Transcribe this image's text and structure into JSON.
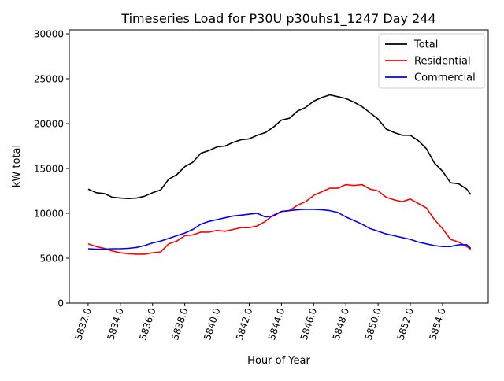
{
  "chart_data": {
    "type": "line",
    "title": "Timeseries Load for P30U p30uhs1_1247  Day 244",
    "xlabel": "Hour of Year",
    "ylabel": "kW total",
    "xlim": [
      5830.83,
      5856.84
    ],
    "ylim": [
      0,
      30440
    ],
    "xticks": [
      5832,
      5834,
      5836,
      5838,
      5840,
      5842,
      5844,
      5846,
      5848,
      5850,
      5852,
      5854
    ],
    "xtick_labels": [
      "5832.0",
      "5834.0",
      "5836.0",
      "5838.0",
      "5840.0",
      "5842.0",
      "5844.0",
      "5846.0",
      "5848.0",
      "5850.0",
      "5852.0",
      "5854.0"
    ],
    "yticks": [
      0,
      5000,
      10000,
      15000,
      20000,
      25000,
      30000
    ],
    "ytick_labels": [
      "0",
      "5000",
      "10000",
      "15000",
      "20000",
      "25000",
      "30000"
    ],
    "grid": false,
    "legend_position": "top-right",
    "x": [
      5832,
      5832.5,
      5833,
      5833.5,
      5834,
      5834.5,
      5835,
      5835.5,
      5836,
      5836.5,
      5837,
      5837.5,
      5838,
      5838.5,
      5839,
      5839.5,
      5840,
      5840.5,
      5841,
      5841.5,
      5842,
      5842.5,
      5843,
      5843.5,
      5844,
      5844.5,
      5845,
      5845.5,
      5846,
      5846.5,
      5847,
      5847.5,
      5848,
      5848.5,
      5849,
      5849.5,
      5850,
      5850.5,
      5851,
      5851.5,
      5852,
      5852.5,
      5853,
      5853.5,
      5854,
      5854.5,
      5855,
      5855.5,
      5855.75
    ],
    "series": [
      {
        "name": "Total",
        "color": "#000000",
        "values": [
          12700,
          12300,
          12200,
          11800,
          11700,
          11650,
          11700,
          11900,
          12300,
          12600,
          13800,
          14300,
          15200,
          15700,
          16700,
          17000,
          17400,
          17500,
          17900,
          18200,
          18300,
          18700,
          19000,
          19600,
          20400,
          20600,
          21400,
          21800,
          22500,
          22900,
          23200,
          23000,
          22800,
          22400,
          21900,
          21200,
          20500,
          19400,
          19000,
          18700,
          18700,
          18100,
          17200,
          15600,
          14700,
          13400,
          13300,
          12700,
          12100
        ]
      },
      {
        "name": "Residential",
        "color": "#ff0000",
        "values": [
          6600,
          6300,
          6100,
          5800,
          5600,
          5500,
          5450,
          5450,
          5600,
          5700,
          6600,
          6900,
          7500,
          7600,
          7900,
          7900,
          8100,
          8000,
          8200,
          8400,
          8400,
          8600,
          9100,
          9800,
          10200,
          10300,
          10900,
          11300,
          12000,
          12400,
          12800,
          12800,
          13200,
          13100,
          13200,
          12700,
          12500,
          11800,
          11500,
          11300,
          11600,
          11100,
          10600,
          9300,
          8300,
          7100,
          6800,
          6300,
          6000
        ]
      },
      {
        "name": "Commercial",
        "color": "#0000ff",
        "values": [
          6050,
          6000,
          6000,
          6050,
          6050,
          6100,
          6200,
          6400,
          6700,
          6900,
          7200,
          7500,
          7800,
          8200,
          8800,
          9100,
          9300,
          9500,
          9700,
          9800,
          9900,
          10000,
          9600,
          9700,
          10200,
          10300,
          10400,
          10450,
          10450,
          10400,
          10300,
          10100,
          9600,
          9200,
          8800,
          8300,
          8000,
          7700,
          7500,
          7300,
          7100,
          6800,
          6600,
          6400,
          6300,
          6300,
          6500,
          6500,
          6100
        ]
      }
    ]
  }
}
